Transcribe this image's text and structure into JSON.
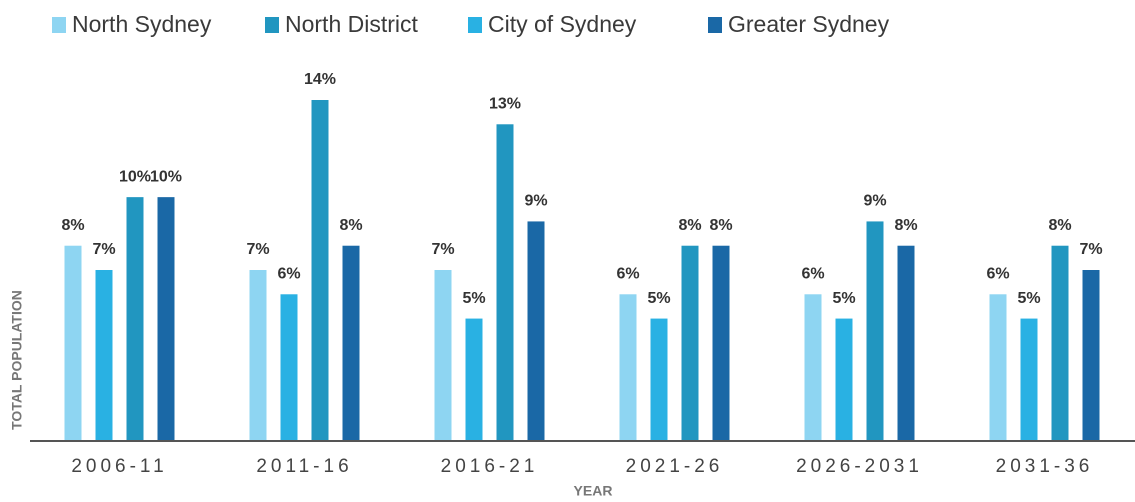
{
  "chart_data": {
    "type": "bar",
    "x_label": "YEAR",
    "y_label": "TOTAL POPULATION",
    "categories": [
      "2006-11",
      "2011-16",
      "2016-21",
      "2021-26",
      "2026-2031",
      "2031-36"
    ],
    "ylim": [
      0,
      14
    ],
    "series": [
      {
        "name": "North Sydney",
        "color": "#8ed5f2",
        "values": [
          8,
          7,
          7,
          6,
          6,
          6
        ],
        "value_labels": [
          "8%",
          "7%",
          "7%",
          "6%",
          "6%",
          "6%"
        ]
      },
      {
        "name": "North District",
        "color": "#2196c0",
        "values": [
          10,
          14,
          13,
          8,
          9,
          8
        ],
        "value_labels": [
          "10%",
          "14%",
          "13%",
          "8%",
          "9%",
          "8%"
        ]
      },
      {
        "name": "City of Sydney",
        "color": "#29b1e3",
        "values": [
          7,
          6,
          5,
          5,
          5,
          5
        ],
        "value_labels": [
          "7%",
          "6%",
          "5%",
          "5%",
          "5%",
          "5%"
        ]
      },
      {
        "name": "Greater Sydney",
        "color": "#1a68a6",
        "values": [
          10,
          8,
          9,
          8,
          8,
          7
        ],
        "value_labels": [
          "10%",
          "8%",
          "9%",
          "8%",
          "8%",
          "7%"
        ]
      }
    ]
  }
}
